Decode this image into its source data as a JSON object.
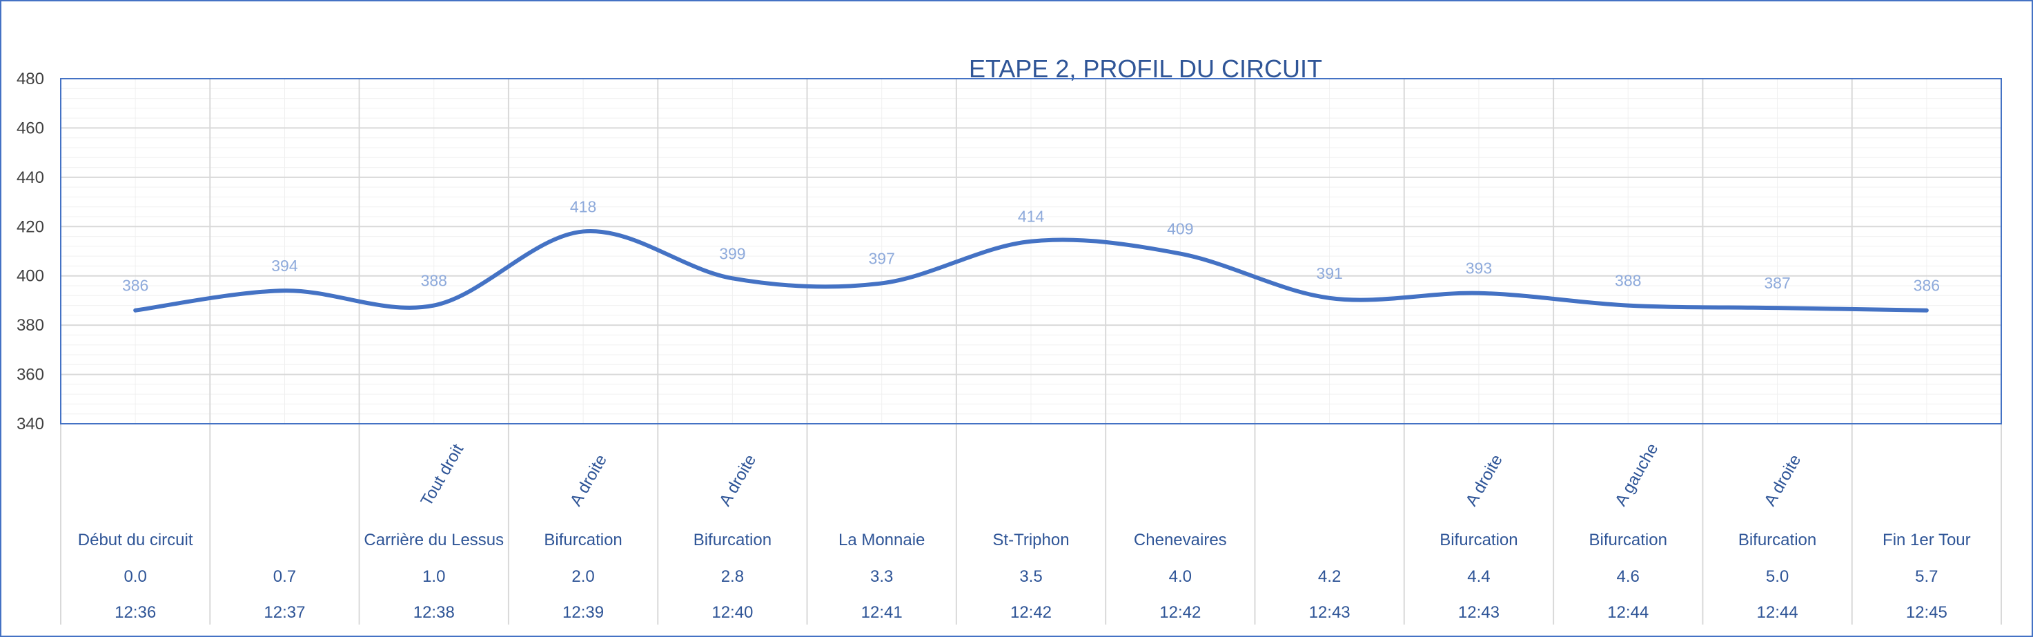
{
  "chart_data": {
    "type": "line",
    "title": "ETAPE 2, PROFIL DU CIRCUIT",
    "ylim": [
      340,
      480
    ],
    "yticks": [
      340,
      360,
      380,
      400,
      420,
      440,
      460,
      480
    ],
    "grid": true,
    "smooth": true,
    "line_color": "#4472c4",
    "label_color": "#8eaadb",
    "text_color": "#2f5597",
    "categories": [
      {
        "direction": "",
        "place": "Début du circuit",
        "km": "0.0",
        "time": "12:36"
      },
      {
        "direction": "",
        "place": "",
        "km": "0.7",
        "time": "12:37"
      },
      {
        "direction": "Tout droit",
        "place": "Carrière du Lessus",
        "km": "1.0",
        "time": "12:38"
      },
      {
        "direction": "A droite",
        "place": "Bifurcation",
        "km": "2.0",
        "time": "12:39"
      },
      {
        "direction": "A droite",
        "place": "Bifurcation",
        "km": "2.8",
        "time": "12:40"
      },
      {
        "direction": "",
        "place": "La Monnaie",
        "km": "3.3",
        "time": "12:41"
      },
      {
        "direction": "",
        "place": "St-Triphon",
        "km": "3.5",
        "time": "12:42"
      },
      {
        "direction": "",
        "place": "Chenevaires",
        "km": "4.0",
        "time": "12:42"
      },
      {
        "direction": "",
        "place": "",
        "km": "4.2",
        "time": "12:43"
      },
      {
        "direction": "A droite",
        "place": "Bifurcation",
        "km": "4.4",
        "time": "12:43"
      },
      {
        "direction": "A gauche",
        "place": "Bifurcation",
        "km": "4.6",
        "time": "12:44"
      },
      {
        "direction": "A droite",
        "place": "Bifurcation",
        "km": "5.0",
        "time": "12:44"
      },
      {
        "direction": "",
        "place": "Fin 1er Tour",
        "km": "5.7",
        "time": "12:45"
      }
    ],
    "series": [
      {
        "values": [
          386,
          394,
          388,
          418,
          399,
          397,
          414,
          409,
          391,
          393,
          388,
          387,
          386
        ]
      }
    ]
  }
}
